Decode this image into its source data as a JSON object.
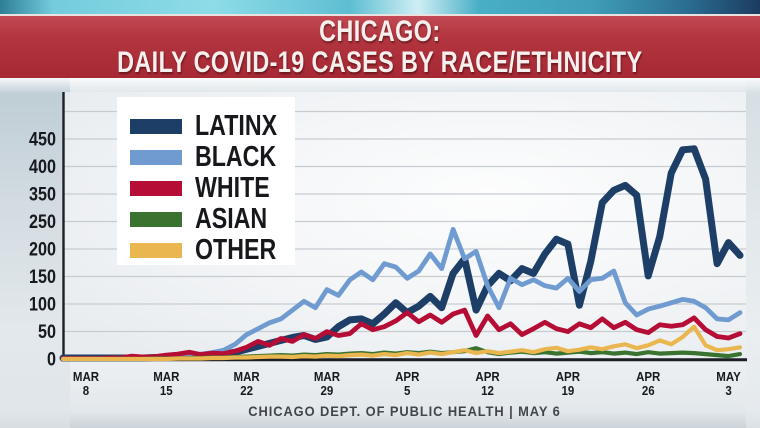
{
  "header": {
    "line1": "CHICAGO:",
    "line2": "DAILY COVID-19 CASES BY RACE/ETHNICITY",
    "banner_color": "#b2353f",
    "topbar_color": "#63c3d5",
    "text_color": "#f5efee"
  },
  "legend": {
    "items": [
      {
        "label": "LATINX",
        "color": "#1d3e66"
      },
      {
        "label": "BLACK",
        "color": "#6f9bd1"
      },
      {
        "label": "WHITE",
        "color": "#b50d36"
      },
      {
        "label": "ASIAN",
        "color": "#3a7230"
      },
      {
        "label": "OTHER",
        "color": "#eab64f"
      }
    ]
  },
  "axes": {
    "y_labels_top_to_bottom": [
      "450",
      "400",
      "350",
      "250",
      "200",
      "150",
      "100",
      "50",
      "0"
    ],
    "x_ticks": [
      {
        "month": "MAR",
        "day": "8",
        "index": 2
      },
      {
        "month": "MAR",
        "day": "15",
        "index": 9
      },
      {
        "month": "MAR",
        "day": "22",
        "index": 16
      },
      {
        "month": "MAR",
        "day": "29",
        "index": 23
      },
      {
        "month": "APR",
        "day": "5",
        "index": 30
      },
      {
        "month": "APR",
        "day": "12",
        "index": 37
      },
      {
        "month": "APR",
        "day": "19",
        "index": 44
      },
      {
        "month": "APR",
        "day": "26",
        "index": 51
      },
      {
        "month": "MAY",
        "day": "3",
        "index": 58
      }
    ],
    "grid_color": "#c7ccd1",
    "axis_color": "#1c1f24",
    "label_color": "#16191d"
  },
  "footer": {
    "text": "CHICAGO DEPT. OF PUBLIC HEALTH  |  MAY 6"
  },
  "chart_data": {
    "type": "line",
    "title": "CHICAGO: DAILY COVID-19 CASES BY RACE/ETHNICITY",
    "ylim": [
      0,
      450
    ],
    "grid": true,
    "legend_position": "upper-left",
    "y_tick_labels_as_shown": [
      "0",
      "50",
      "100",
      "150",
      "200",
      "250",
      "350",
      "400",
      "450"
    ],
    "x": [
      "3/6",
      "3/7",
      "3/8",
      "3/9",
      "3/10",
      "3/11",
      "3/12",
      "3/13",
      "3/14",
      "3/15",
      "3/16",
      "3/17",
      "3/18",
      "3/19",
      "3/20",
      "3/21",
      "3/22",
      "3/23",
      "3/24",
      "3/25",
      "3/26",
      "3/27",
      "3/28",
      "3/29",
      "3/30",
      "3/31",
      "4/1",
      "4/2",
      "4/3",
      "4/4",
      "4/5",
      "4/6",
      "4/7",
      "4/8",
      "4/9",
      "4/10",
      "4/11",
      "4/12",
      "4/13",
      "4/14",
      "4/15",
      "4/16",
      "4/17",
      "4/18",
      "4/19",
      "4/20",
      "4/21",
      "4/22",
      "4/23",
      "4/24",
      "4/25",
      "4/26",
      "4/27",
      "4/28",
      "4/29",
      "4/30",
      "5/1",
      "5/2",
      "5/3",
      "5/4"
    ],
    "series": [
      {
        "name": "LATINX",
        "color": "#1d3e66",
        "width": 7,
        "values": [
          2,
          2,
          2,
          2,
          2,
          2,
          2,
          2,
          3,
          3,
          4,
          5,
          6,
          8,
          10,
          14,
          20,
          26,
          32,
          38,
          44,
          48,
          40,
          45,
          66,
          80,
          82,
          72,
          92,
          115,
          95,
          108,
          128,
          105,
          175,
          205,
          100,
          150,
          175,
          160,
          185,
          175,
          215,
          245,
          235,
          110,
          200,
          320,
          345,
          355,
          335,
          170,
          250,
          380,
          428,
          430,
          368,
          195,
          238,
          212
        ]
      },
      {
        "name": "BLACK",
        "color": "#6f9bd1",
        "width": 4.8,
        "values": [
          1,
          1,
          1,
          1,
          1,
          2,
          2,
          3,
          4,
          4,
          5,
          7,
          10,
          13,
          18,
          30,
          50,
          62,
          74,
          82,
          100,
          118,
          105,
          142,
          130,
          162,
          178,
          162,
          195,
          188,
          165,
          180,
          215,
          185,
          265,
          205,
          220,
          150,
          105,
          165,
          152,
          162,
          150,
          145,
          165,
          138,
          162,
          165,
          180,
          115,
          90,
          102,
          108,
          115,
          122,
          118,
          105,
          82,
          80,
          95
        ]
      },
      {
        "name": "WHITE",
        "color": "#b50d36",
        "width": 4.8,
        "values": [
          1,
          1,
          1,
          1,
          2,
          2,
          6,
          4,
          5,
          8,
          10,
          14,
          9,
          12,
          11,
          16,
          24,
          36,
          28,
          42,
          36,
          50,
          42,
          56,
          48,
          52,
          72,
          60,
          66,
          78,
          95,
          76,
          90,
          75,
          92,
          100,
          48,
          88,
          60,
          72,
          50,
          62,
          75,
          62,
          56,
          72,
          64,
          82,
          64,
          75,
          60,
          54,
          70,
          67,
          70,
          84,
          60,
          46,
          43,
          52
        ]
      },
      {
        "name": "ASIAN",
        "color": "#3a7230",
        "width": 4.2,
        "values": [
          0,
          0,
          0,
          0,
          0,
          0,
          0,
          0,
          1,
          1,
          1,
          2,
          2,
          3,
          3,
          4,
          5,
          6,
          7,
          8,
          7,
          9,
          8,
          10,
          9,
          11,
          12,
          10,
          13,
          11,
          14,
          12,
          15,
          12,
          14,
          16,
          22,
          14,
          10,
          13,
          15,
          12,
          14,
          11,
          13,
          15,
          12,
          14,
          11,
          13,
          10,
          14,
          11,
          12,
          13,
          12,
          10,
          8,
          6,
          10
        ]
      },
      {
        "name": "OTHER",
        "color": "#eab64f",
        "width": 4.2,
        "values": [
          0,
          0,
          0,
          0,
          0,
          0,
          0,
          0,
          0,
          0,
          1,
          1,
          1,
          2,
          2,
          3,
          3,
          4,
          5,
          5,
          4,
          6,
          5,
          7,
          6,
          8,
          9,
          7,
          10,
          8,
          12,
          9,
          13,
          10,
          14,
          18,
          12,
          16,
          12,
          15,
          18,
          14,
          20,
          23,
          16,
          19,
          24,
          20,
          26,
          30,
          22,
          28,
          38,
          30,
          45,
          66,
          28,
          18,
          20,
          24
        ]
      }
    ]
  }
}
